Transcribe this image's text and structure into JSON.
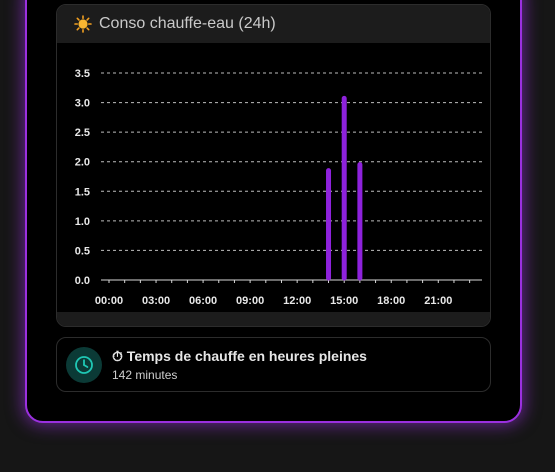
{
  "card": {
    "title": "Conso chauffe-eau (24h)",
    "icon": "sun-icon"
  },
  "chart_data": {
    "type": "bar",
    "title": "",
    "xlabel": "",
    "ylabel": "",
    "x_ticks": [
      "00:00",
      "03:00",
      "06:00",
      "09:00",
      "12:00",
      "15:00",
      "18:00",
      "21:00"
    ],
    "y_ticks": [
      "0.0",
      "0.5",
      "1.0",
      "1.5",
      "2.0",
      "2.5",
      "3.0",
      "3.5"
    ],
    "xlim_hours": [
      0,
      24
    ],
    "ylim": [
      0,
      3.5
    ],
    "grid": true,
    "bar_color": "#8e22dc",
    "series": [
      {
        "x": [
          "14:00",
          "15:00",
          "16:00"
        ],
        "values": [
          1.85,
          3.07,
          1.95
        ]
      }
    ]
  },
  "info": {
    "title": "⏱ Temps de chauffe en heures pleines",
    "value": "142 minutes",
    "icon": "clock-icon",
    "accent": "#1fc7b4"
  },
  "colors": {
    "frame_border": "#9b30e0",
    "background": "#000000",
    "header": "#1c1c1c"
  }
}
